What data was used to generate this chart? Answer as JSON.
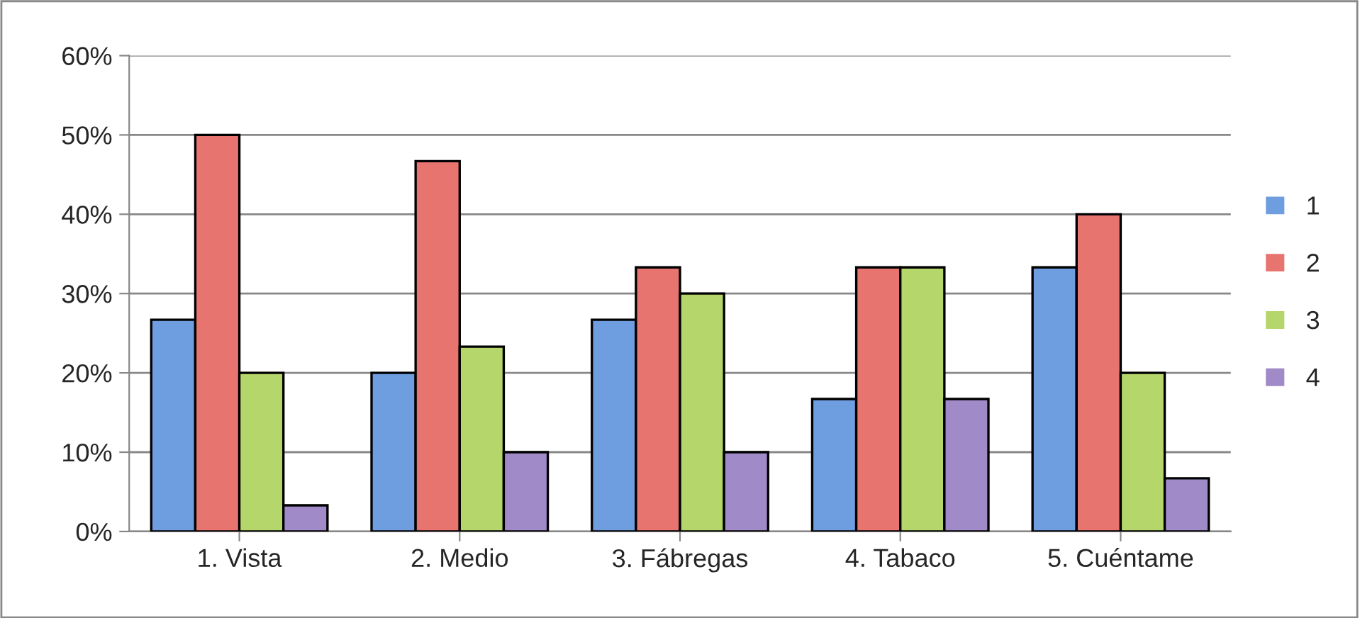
{
  "chart_data": {
    "type": "bar",
    "categories": [
      "1. Vista",
      "2. Medio",
      "3. Fábregas",
      "4. Tabaco",
      "5. Cuéntame"
    ],
    "series": [
      {
        "name": "1",
        "color": "#6f9ee0",
        "values": [
          26.7,
          20,
          26.7,
          16.7,
          33.3
        ]
      },
      {
        "name": "2",
        "color": "#e87470",
        "values": [
          50,
          46.7,
          33.3,
          33.3,
          40
        ]
      },
      {
        "name": "3",
        "color": "#b5d66b",
        "values": [
          20,
          23.3,
          30,
          33.3,
          20
        ]
      },
      {
        "name": "4",
        "color": "#a08ac8",
        "values": [
          3.3,
          10,
          10,
          16.7,
          6.7
        ]
      }
    ],
    "ylim": [
      0,
      60
    ],
    "yticks": [
      {
        "value": 0,
        "label": "0%"
      },
      {
        "value": 10,
        "label": "10%"
      },
      {
        "value": 20,
        "label": "20%"
      },
      {
        "value": 30,
        "label": "30%"
      },
      {
        "value": 40,
        "label": "40%"
      },
      {
        "value": 50,
        "label": "50%"
      },
      {
        "value": 60,
        "label": "60%"
      }
    ],
    "grid": "y",
    "legend": "right"
  }
}
